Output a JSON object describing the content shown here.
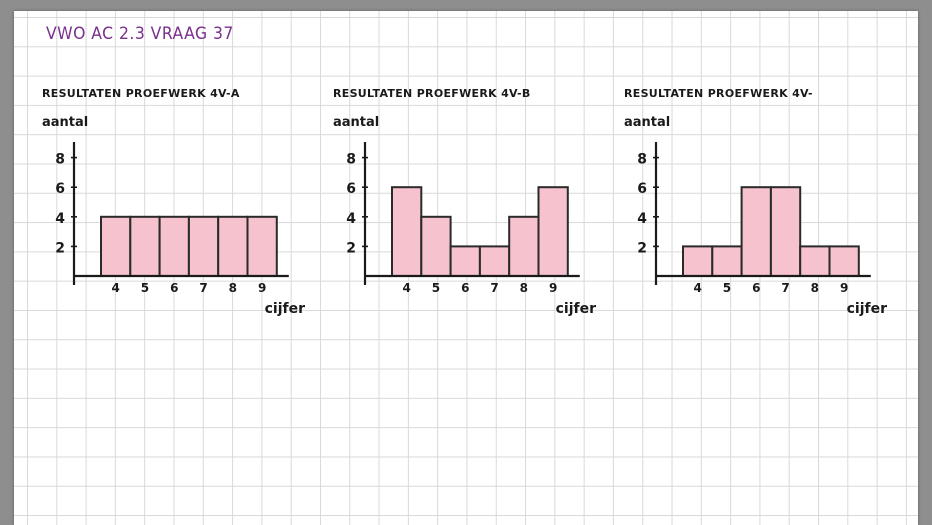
{
  "page_title": "VWO AC 2.3 VRAAG 37",
  "colors": {
    "bar_fill": "#f6c2ce",
    "bar_stroke": "#2a2a2a",
    "title": "#7a2e8e",
    "ink": "#1a1a1a"
  },
  "chart_data": [
    {
      "type": "bar",
      "title": "RESULTATEN PROEFWERK 4V-A",
      "xlabel": "cijfer",
      "ylabel": "aantal",
      "categories": [
        "4",
        "5",
        "6",
        "7",
        "8",
        "9"
      ],
      "values": [
        4,
        4,
        4,
        4,
        4,
        4
      ],
      "yticks": [
        "2",
        "4",
        "6",
        "8"
      ],
      "ylim": [
        0,
        9
      ],
      "grid": false
    },
    {
      "type": "bar",
      "title": "RESULTATEN PROEFWERK 4V-B",
      "xlabel": "cijfer",
      "ylabel": "aantal",
      "categories": [
        "4",
        "5",
        "6",
        "7",
        "8",
        "9"
      ],
      "values": [
        6,
        4,
        2,
        2,
        4,
        6
      ],
      "yticks": [
        "2",
        "4",
        "6",
        "8"
      ],
      "ylim": [
        0,
        9
      ],
      "grid": false
    },
    {
      "type": "bar",
      "title": "RESULTATEN PROEFWERK 4V-",
      "xlabel": "cijfer",
      "ylabel": "aantal",
      "categories": [
        "4",
        "5",
        "6",
        "7",
        "8",
        "9"
      ],
      "values": [
        2,
        2,
        6,
        6,
        2,
        2
      ],
      "yticks": [
        "2",
        "4",
        "6",
        "8"
      ],
      "ylim": [
        0,
        9
      ],
      "grid": false
    }
  ]
}
